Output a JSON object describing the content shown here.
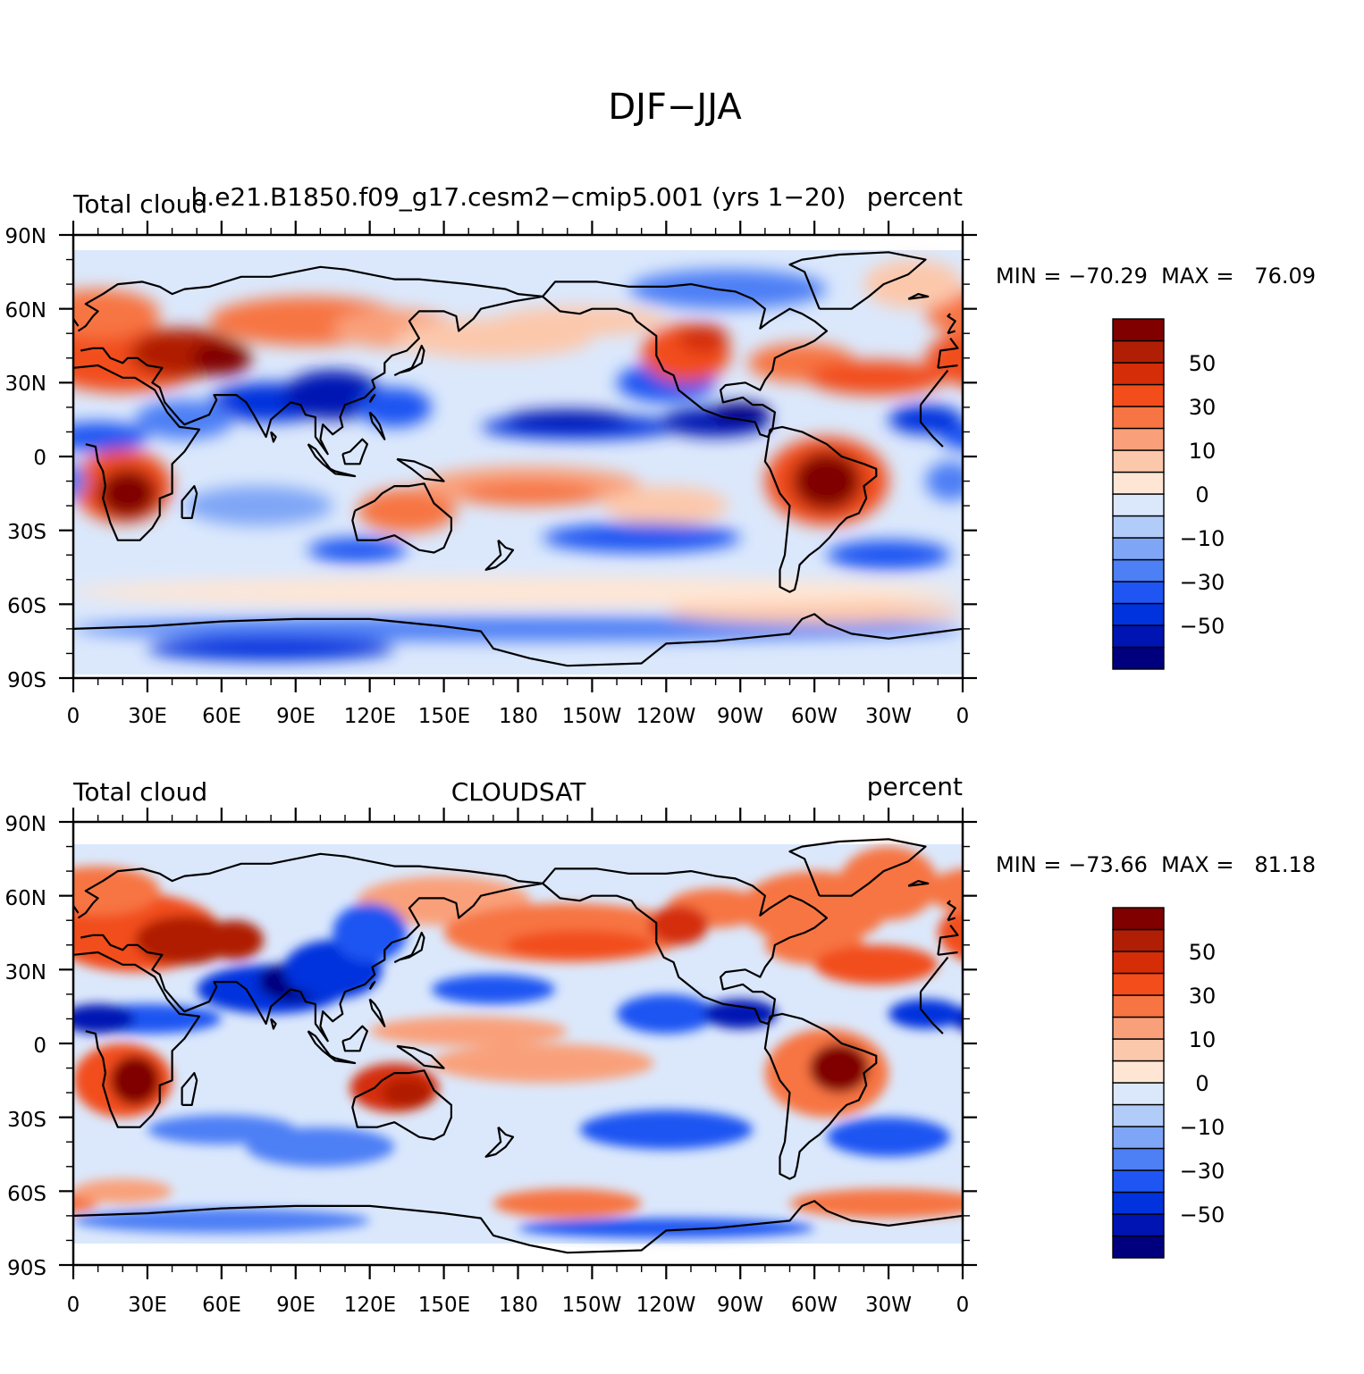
{
  "title": "DJF−JJA",
  "colors": [
    "#00007f",
    "#0014b3",
    "#0033dd",
    "#1f55f2",
    "#4d7ff5",
    "#7fa6f6",
    "#b2ccfa",
    "#dbe8fc",
    "#ffe6d4",
    "#fcc8ac",
    "#f9a07a",
    "#f77443",
    "#f24d1a",
    "#d42d08",
    "#b01f05",
    "#800000"
  ],
  "panels": [
    {
      "left_label": "Total cloud",
      "center_label": "b.e21.B1850.f09_g17.cesm2−cmip5.001 (yrs 1−20)",
      "right_label": "percent",
      "stats": "MIN = −70.29  MAX =   76.09"
    },
    {
      "left_label": "Total cloud",
      "center_label": "CLOUDSAT",
      "right_label": "percent",
      "stats": "MIN = −73.66  MAX =   81.18"
    }
  ],
  "axes": {
    "lat_ticks": [
      "90N",
      "60N",
      "30N",
      "0",
      "30S",
      "60S",
      "90S"
    ],
    "lon_ticks": [
      "0",
      "30E",
      "60E",
      "90E",
      "120E",
      "150E",
      "180",
      "150W",
      "120W",
      "90W",
      "60W",
      "30W",
      "0"
    ]
  },
  "colorbar_labels": [
    "50",
    "30",
    "10",
    "0",
    "−10",
    "−30",
    "−50"
  ]
}
